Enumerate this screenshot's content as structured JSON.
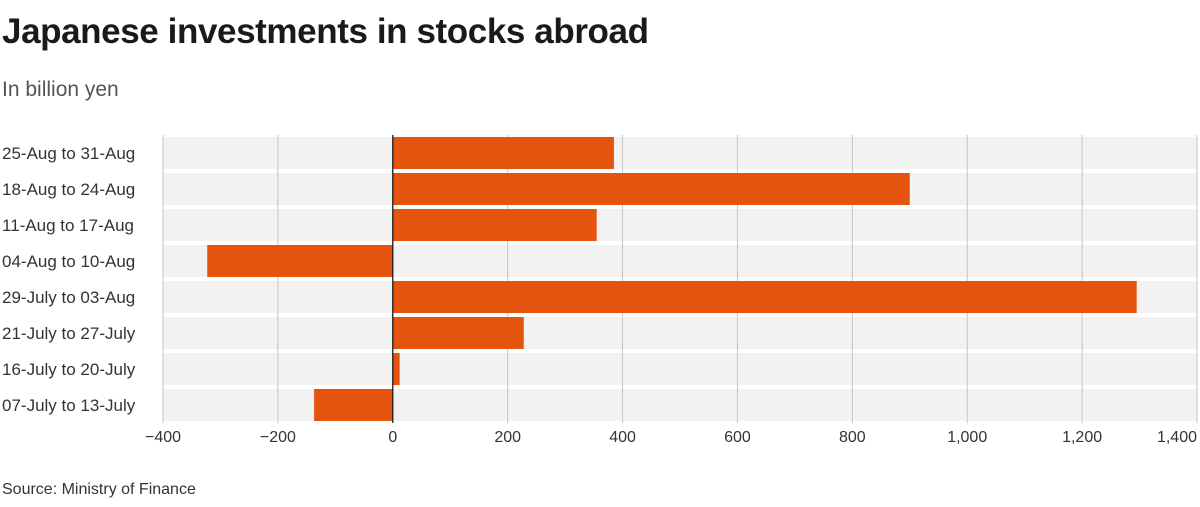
{
  "header": {
    "title": "Japanese investments in stocks abroad",
    "subtitle": "In billion yen"
  },
  "footer": {
    "source": "Source: Ministry of Finance"
  },
  "colors": {
    "bar": "#e5540f",
    "band": "#f2f2f2",
    "grid": "#c4c4c4",
    "zero_line": "#1a1a1a"
  },
  "chart_data": {
    "type": "bar",
    "orientation": "horizontal",
    "title": "Japanese investments in stocks abroad",
    "subtitle": "In billion yen",
    "categories": [
      "25-Aug to 31-Aug",
      "18-Aug to 24-Aug",
      "11-Aug to 17-Aug",
      "04-Aug to 10-Aug",
      "29-July to 03-Aug",
      "21-July to 27-July",
      "16-July to 20-July",
      "07-July to 13-July"
    ],
    "values": [
      385,
      900,
      355,
      -323,
      1295,
      228,
      12,
      -137
    ],
    "xlim": [
      -400,
      1400
    ],
    "xticks": [
      -400,
      -200,
      0,
      200,
      400,
      600,
      800,
      1000,
      1200,
      1400
    ],
    "xtick_labels": [
      "−400",
      "−200",
      "0",
      "200",
      "400",
      "600",
      "800",
      "1,000",
      "1,200",
      "1,400"
    ],
    "grid": true,
    "source": "Source: Ministry of Finance"
  }
}
